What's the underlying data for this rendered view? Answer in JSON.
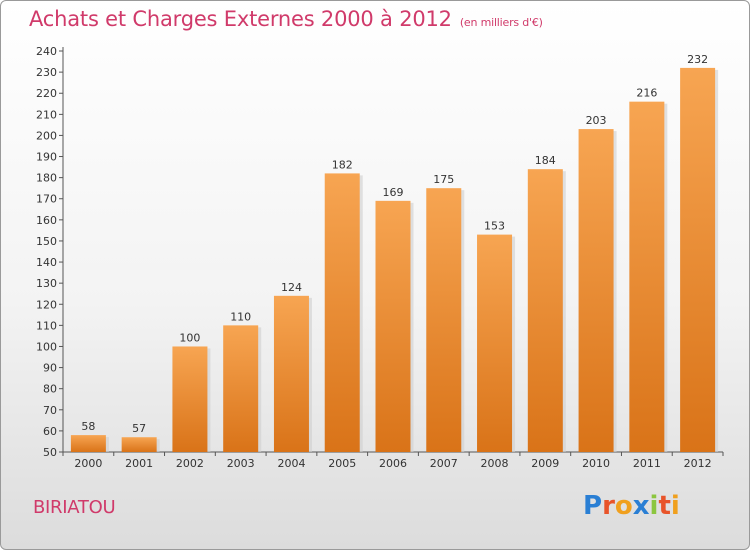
{
  "header": {
    "title": "Achats et Charges Externes 2000 à 2012",
    "subtitle": "(en milliers d'€)"
  },
  "commune": "BIRIATOU",
  "logo": {
    "text": "Proxiti",
    "letters": [
      {
        "ch": "P",
        "color": "#2a7fd4"
      },
      {
        "ch": "r",
        "color": "#e8542a"
      },
      {
        "ch": "o",
        "color": "#f0a01e"
      },
      {
        "ch": "x",
        "color": "#2a7fd4"
      },
      {
        "ch": "i",
        "color": "#8cc63f"
      },
      {
        "ch": "t",
        "color": "#e8542a"
      },
      {
        "ch": "i",
        "color": "#f0a01e"
      }
    ]
  },
  "chart_data": {
    "type": "bar",
    "title": "Achats et Charges Externes 2000 à 2012",
    "subtitle": "(en milliers d'€)",
    "xlabel": "",
    "ylabel": "",
    "categories": [
      "2000",
      "2001",
      "2002",
      "2003",
      "2004",
      "2005",
      "2006",
      "2007",
      "2008",
      "2009",
      "2010",
      "2011",
      "2012"
    ],
    "values": [
      58,
      57,
      100,
      110,
      124,
      182,
      169,
      175,
      153,
      184,
      203,
      216,
      232
    ],
    "ylim": [
      50,
      240
    ],
    "ytick_step": 10,
    "grid": false,
    "bar_color_top": "#f7a552",
    "bar_color_bottom": "#d97318",
    "text_color": "#333333"
  }
}
